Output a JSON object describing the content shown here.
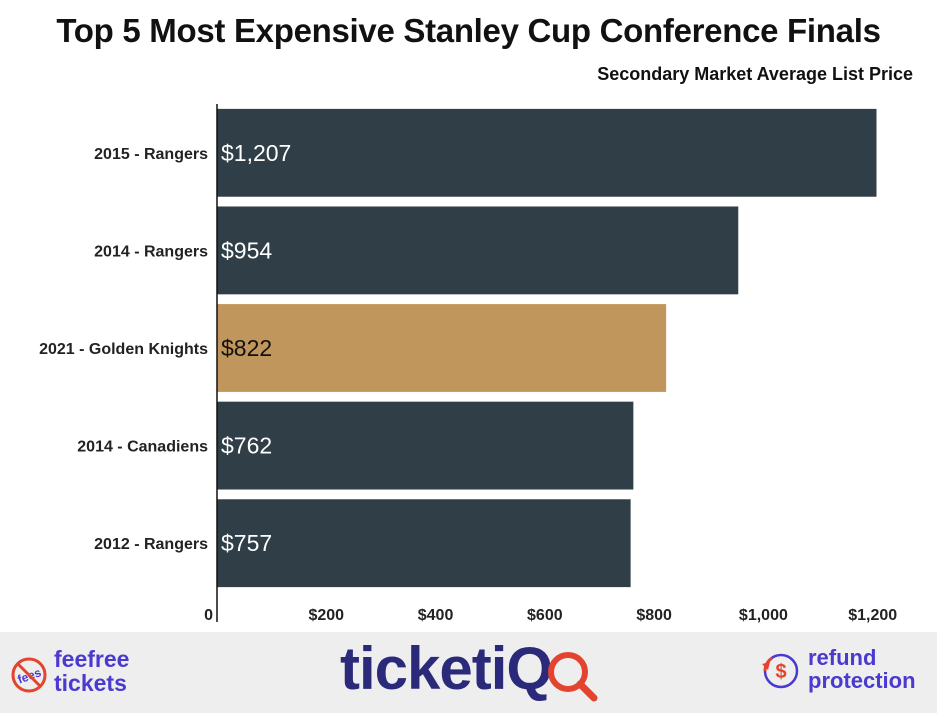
{
  "chart_data": {
    "type": "bar",
    "orientation": "horizontal",
    "title": "Top 5 Most Expensive Stanley Cup Conference Finals",
    "subtitle": "Secondary Market Average List Price",
    "categories": [
      "2015 - Rangers",
      "2014 - Rangers",
      "2021 - Golden Knights",
      "2014 - Canadiens",
      "2012 - Rangers"
    ],
    "values": [
      1207,
      954,
      822,
      762,
      757
    ],
    "value_labels": [
      "$1,207",
      "$954",
      "$822",
      "$762",
      "$757"
    ],
    "xlim": [
      0,
      1250
    ],
    "x_ticks": [
      0,
      200,
      400,
      600,
      800,
      1000,
      1200
    ],
    "x_tick_labels": [
      "0",
      "$200",
      "$400",
      "$600",
      "$800",
      "$1,000",
      "$1,200"
    ],
    "grid": false,
    "colors": {
      "default_bar": "#2f3e47",
      "highlight_bar": "#c0965c",
      "highlight_index": 2,
      "default_label": "#ffffff",
      "highlight_label": "#111111"
    }
  },
  "footer": {
    "fee_logo": {
      "line1": "feefree",
      "line2": "tickets",
      "icon": "no-fees-icon",
      "icon_text": "fees"
    },
    "brand_logo": {
      "text": "ticketiQ",
      "icon": "magnifier-icon"
    },
    "refund_logo": {
      "line1": "refund",
      "line2": "protection",
      "icon": "refund-dollar-icon",
      "icon_text": "$"
    },
    "background": "#eeeeee",
    "accent": "#4a3ad0"
  }
}
